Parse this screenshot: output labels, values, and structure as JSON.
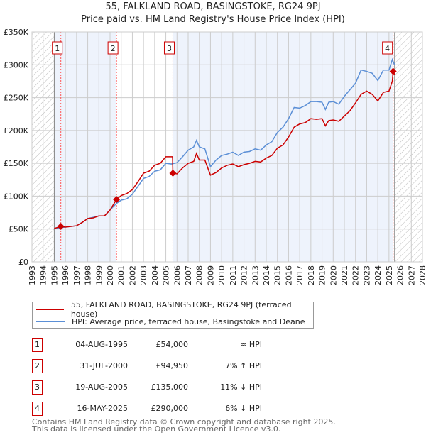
{
  "title": "55, FALKLAND ROAD, BASINGSTOKE, RG24 9PJ",
  "subtitle": "Price paid vs. HM Land Registry's House Price Index (HPI)",
  "chart_data": {
    "type": "line",
    "xlim": [
      1993,
      2028
    ],
    "ylim": [
      0,
      350000
    ],
    "yticks": [
      {
        "v": 0,
        "label": "£0"
      },
      {
        "v": 50000,
        "label": "£50K"
      },
      {
        "v": 100000,
        "label": "£100K"
      },
      {
        "v": 150000,
        "label": "£150K"
      },
      {
        "v": 200000,
        "label": "£200K"
      },
      {
        "v": 250000,
        "label": "£250K"
      },
      {
        "v": 300000,
        "label": "£300K"
      },
      {
        "v": 350000,
        "label": "£350K"
      }
    ],
    "xticks": [
      "1993",
      "1994",
      "1995",
      "1996",
      "1997",
      "1998",
      "1999",
      "2000",
      "2001",
      "2002",
      "2003",
      "2004",
      "2005",
      "2006",
      "2007",
      "2008",
      "2009",
      "2010",
      "2011",
      "2012",
      "2013",
      "2014",
      "2015",
      "2016",
      "2017",
      "2018",
      "2019",
      "2020",
      "2021",
      "2022",
      "2023",
      "2024",
      "2025",
      "2026",
      "2027",
      "2028"
    ],
    "data_range": [
      1995.0,
      2025.5
    ],
    "series": [
      {
        "name": "55, FALKLAND ROAD, BASINGSTOKE, RG24 9PJ (terraced house)",
        "color": "#cc0000",
        "points": [
          [
            1995.0,
            51000
          ],
          [
            1995.6,
            54000
          ],
          [
            1996,
            53000
          ],
          [
            1997,
            55000
          ],
          [
            1997.5,
            60000
          ],
          [
            1998,
            66000
          ],
          [
            1998.5,
            67000
          ],
          [
            1999,
            70000
          ],
          [
            1999.5,
            70000
          ],
          [
            2000,
            79000
          ],
          [
            2000.58,
            94950
          ],
          [
            2001,
            101000
          ],
          [
            2001.5,
            104000
          ],
          [
            2002,
            110000
          ],
          [
            2002.5,
            122000
          ],
          [
            2003,
            135000
          ],
          [
            2003.5,
            138000
          ],
          [
            2004,
            147000
          ],
          [
            2004.5,
            150000
          ],
          [
            2005,
            160000
          ],
          [
            2005.6,
            160000
          ],
          [
            2005.63,
            135000
          ],
          [
            2006,
            134000
          ],
          [
            2006.5,
            143000
          ],
          [
            2007,
            150000
          ],
          [
            2007.5,
            153000
          ],
          [
            2007.75,
            165000
          ],
          [
            2008,
            155000
          ],
          [
            2008.5,
            155000
          ],
          [
            2009,
            132000
          ],
          [
            2009.5,
            136000
          ],
          [
            2010,
            143000
          ],
          [
            2010.5,
            147000
          ],
          [
            2011,
            149000
          ],
          [
            2011.5,
            145000
          ],
          [
            2012,
            148000
          ],
          [
            2012.5,
            150000
          ],
          [
            2013,
            153000
          ],
          [
            2013.5,
            152000
          ],
          [
            2014,
            158000
          ],
          [
            2014.5,
            162000
          ],
          [
            2015,
            173000
          ],
          [
            2015.5,
            178000
          ],
          [
            2016,
            190000
          ],
          [
            2016.5,
            205000
          ],
          [
            2017,
            210000
          ],
          [
            2017.5,
            212000
          ],
          [
            2018,
            218000
          ],
          [
            2018.5,
            217000
          ],
          [
            2019,
            218000
          ],
          [
            2019.3,
            207000
          ],
          [
            2019.6,
            215000
          ],
          [
            2020,
            216000
          ],
          [
            2020.5,
            214000
          ],
          [
            2021,
            222000
          ],
          [
            2021.5,
            230000
          ],
          [
            2022,
            242000
          ],
          [
            2022.5,
            255000
          ],
          [
            2023,
            260000
          ],
          [
            2023.5,
            255000
          ],
          [
            2024,
            245000
          ],
          [
            2024.5,
            258000
          ],
          [
            2025,
            260000
          ],
          [
            2025.3,
            275000
          ],
          [
            2025.37,
            290000
          ],
          [
            2025.5,
            285000
          ]
        ]
      },
      {
        "name": "HPI: Average price, terraced house, Basingstoke and Deane",
        "color": "#5b8fd6",
        "points": [
          [
            1995.0,
            50500
          ],
          [
            1996,
            53000
          ],
          [
            1997,
            55000
          ],
          [
            1997.5,
            60000
          ],
          [
            1998,
            66000
          ],
          [
            1999,
            70000
          ],
          [
            1999.5,
            70000
          ],
          [
            2000,
            79000
          ],
          [
            2000.58,
            89000
          ],
          [
            2001,
            94000
          ],
          [
            2001.5,
            96000
          ],
          [
            2002,
            103000
          ],
          [
            2002.5,
            115000
          ],
          [
            2003,
            127000
          ],
          [
            2003.5,
            130000
          ],
          [
            2004,
            138000
          ],
          [
            2004.5,
            140000
          ],
          [
            2005,
            150000
          ],
          [
            2005.5,
            149000
          ],
          [
            2006,
            151000
          ],
          [
            2006.5,
            160000
          ],
          [
            2007,
            170000
          ],
          [
            2007.5,
            175000
          ],
          [
            2007.75,
            185000
          ],
          [
            2008,
            175000
          ],
          [
            2008.5,
            172000
          ],
          [
            2009,
            145000
          ],
          [
            2009.5,
            155000
          ],
          [
            2010,
            162000
          ],
          [
            2010.5,
            164000
          ],
          [
            2011,
            167000
          ],
          [
            2011.5,
            162000
          ],
          [
            2012,
            167000
          ],
          [
            2012.5,
            168000
          ],
          [
            2013,
            172000
          ],
          [
            2013.5,
            170000
          ],
          [
            2014,
            178000
          ],
          [
            2014.5,
            183000
          ],
          [
            2015,
            197000
          ],
          [
            2015.5,
            205000
          ],
          [
            2016,
            218000
          ],
          [
            2016.5,
            235000
          ],
          [
            2017,
            234000
          ],
          [
            2017.5,
            238000
          ],
          [
            2018,
            244000
          ],
          [
            2018.5,
            244000
          ],
          [
            2019,
            243000
          ],
          [
            2019.3,
            232000
          ],
          [
            2019.6,
            243000
          ],
          [
            2020,
            244000
          ],
          [
            2020.5,
            240000
          ],
          [
            2021,
            252000
          ],
          [
            2021.5,
            262000
          ],
          [
            2022,
            272000
          ],
          [
            2022.5,
            292000
          ],
          [
            2023,
            290000
          ],
          [
            2023.5,
            287000
          ],
          [
            2024,
            276000
          ],
          [
            2024.5,
            292000
          ],
          [
            2025,
            292000
          ],
          [
            2025.3,
            308000
          ],
          [
            2025.5,
            300000
          ]
        ]
      }
    ],
    "sales": [
      {
        "id": "1",
        "x": 1995.59,
        "y": 54000
      },
      {
        "id": "2",
        "x": 2000.58,
        "y": 94950
      },
      {
        "id": "3",
        "x": 2005.63,
        "y": 135000
      },
      {
        "id": "4",
        "x": 2025.37,
        "y": 290000
      }
    ]
  },
  "legend": [
    "55, FALKLAND ROAD, BASINGSTOKE, RG24 9PJ (terraced house)",
    "HPI: Average price, terraced house, Basingstoke and Deane"
  ],
  "table": [
    {
      "id": "1",
      "date": "04-AUG-1995",
      "price": "£54,000",
      "hpi": "≈ HPI"
    },
    {
      "id": "2",
      "date": "31-JUL-2000",
      "price": "£94,950",
      "hpi": "7% ↑ HPI"
    },
    {
      "id": "3",
      "date": "19-AUG-2005",
      "price": "£135,000",
      "hpi": "11% ↓ HPI"
    },
    {
      "id": "4",
      "date": "16-MAY-2025",
      "price": "£290,000",
      "hpi": "6% ↓ HPI"
    }
  ],
  "footer": [
    "Contains HM Land Registry data © Crown copyright and database right 2025.",
    "This data is licensed under the Open Government Licence v3.0."
  ]
}
